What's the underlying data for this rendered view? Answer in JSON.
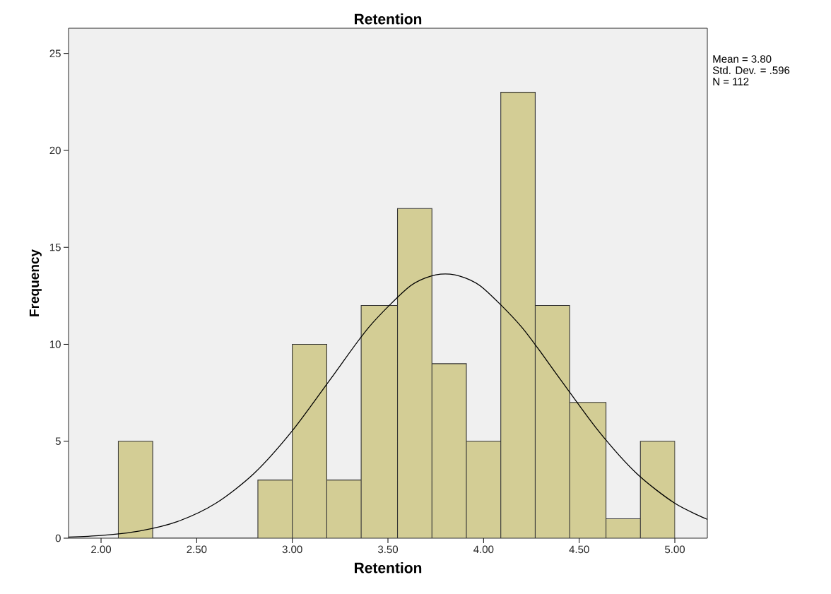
{
  "chart_data": {
    "type": "histogram",
    "title": "Retention",
    "xlabel": "Retention",
    "ylabel": "Frequency",
    "bins": [
      2.09,
      2.27,
      2.82,
      3.0,
      3.18,
      3.36,
      3.55,
      3.73,
      3.91,
      4.09,
      4.27,
      4.45,
      4.64,
      4.82,
      5.0
    ],
    "values": [
      5,
      0,
      3,
      10,
      3,
      12,
      17,
      9,
      5,
      23,
      12,
      7,
      1,
      5
    ],
    "color": "#d3cd95",
    "series": [
      {
        "type": "line",
        "color": "#000000",
        "x": [
          1.83,
          2.0,
          2.2,
          2.4,
          2.6,
          2.8,
          3.0,
          3.2,
          3.4,
          3.6,
          3.7,
          3.8,
          3.9,
          4.0,
          4.2,
          4.4,
          4.6,
          4.8,
          5.0,
          5.17
        ],
        "values": [
          0.06,
          0.14,
          0.37,
          0.86,
          1.8,
          3.34,
          5.54,
          8.21,
          10.88,
          12.88,
          13.44,
          13.63,
          13.44,
          12.88,
          10.88,
          8.21,
          5.54,
          3.34,
          1.8,
          0.97
        ]
      }
    ],
    "xlim": [
      1.83,
      5.17
    ],
    "ylim": [
      0,
      26.3
    ],
    "xticks": [
      {
        "value": 2.0,
        "label": "2.00"
      },
      {
        "value": 2.5,
        "label": "2.50"
      },
      {
        "value": 3.0,
        "label": "3.00"
      },
      {
        "value": 3.5,
        "label": "3.50"
      },
      {
        "value": 4.0,
        "label": "4.00"
      },
      {
        "value": 4.5,
        "label": "4.50"
      },
      {
        "value": 5.0,
        "label": "5.00"
      }
    ],
    "yticks": [
      0,
      5,
      10,
      15,
      20,
      25
    ],
    "grid": false,
    "annotations": [
      "Mean = 3.80",
      "Std. Dev. = .596",
      "N = 112"
    ]
  }
}
